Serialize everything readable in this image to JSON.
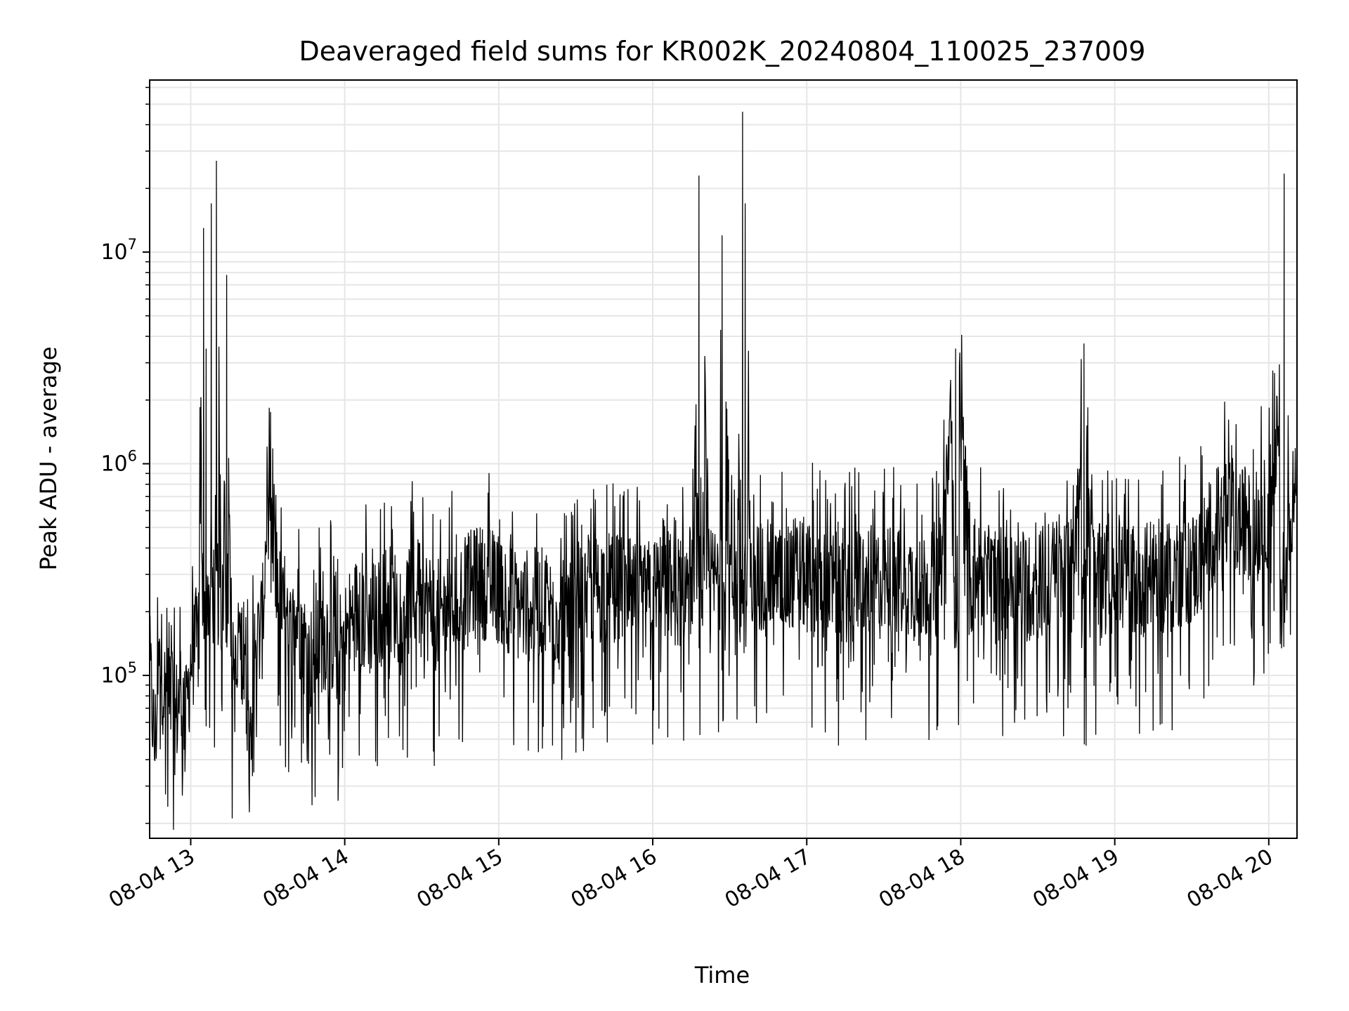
{
  "chart_data": {
    "type": "line",
    "title": "Deaveraged field sums for KR002K_20240804_110025_237009",
    "xlabel": "Time",
    "ylabel": "Peak ADU - average",
    "yscale": "log",
    "ylim": [
      17000,
      65000000
    ],
    "xlim": [
      "2024-08-04 12:44",
      "2024-08-04 20:11"
    ],
    "grid": true,
    "line_color": "#000000",
    "grid_color": "#e6e6e6",
    "x_ticks": [
      {
        "label": "08-04 13",
        "value": "2024-08-04 13:00"
      },
      {
        "label": "08-04 14",
        "value": "2024-08-04 14:00"
      },
      {
        "label": "08-04 15",
        "value": "2024-08-04 15:00"
      },
      {
        "label": "08-04 16",
        "value": "2024-08-04 16:00"
      },
      {
        "label": "08-04 17",
        "value": "2024-08-04 17:00"
      },
      {
        "label": "08-04 18",
        "value": "2024-08-04 18:00"
      },
      {
        "label": "08-04 19",
        "value": "2024-08-04 19:00"
      },
      {
        "label": "08-04 20",
        "value": "2024-08-04 20:00"
      }
    ],
    "y_ticks": [
      {
        "base": "10",
        "exp": "5",
        "value": 100000
      },
      {
        "base": "10",
        "exp": "6",
        "value": 1000000
      },
      {
        "base": "10",
        "exp": "7",
        "value": 10000000
      }
    ],
    "series": [
      {
        "x": [
          "2024-08-04 12:44",
          "2024-08-04 12:46",
          "2024-08-04 12:48",
          "2024-08-04 12:50",
          "2024-08-04 12:52",
          "2024-08-04 12:54",
          "2024-08-04 12:56",
          "2024-08-04 12:58",
          "2024-08-04 13:00",
          "2024-08-04 13:03",
          "2024-08-04 13:05",
          "2024-08-04 13:06",
          "2024-08-04 13:08",
          "2024-08-04 13:10",
          "2024-08-04 13:12",
          "2024-08-04 13:14",
          "2024-08-04 13:16",
          "2024-08-04 13:18",
          "2024-08-04 13:20",
          "2024-08-04 13:23",
          "2024-08-04 13:25",
          "2024-08-04 13:28",
          "2024-08-04 13:30",
          "2024-08-04 13:34",
          "2024-08-04 13:38",
          "2024-08-04 13:42",
          "2024-08-04 13:46",
          "2024-08-04 13:50",
          "2024-08-04 13:54",
          "2024-08-04 13:58",
          "2024-08-04 14:04",
          "2024-08-04 14:10",
          "2024-08-04 14:16",
          "2024-08-04 14:22",
          "2024-08-04 14:28",
          "2024-08-04 14:36",
          "2024-08-04 14:44",
          "2024-08-04 14:52",
          "2024-08-04 15:00",
          "2024-08-04 15:08",
          "2024-08-04 15:16",
          "2024-08-04 15:24",
          "2024-08-04 15:32",
          "2024-08-04 15:40",
          "2024-08-04 15:48",
          "2024-08-04 15:56",
          "2024-08-04 16:04",
          "2024-08-04 16:10",
          "2024-08-04 16:16",
          "2024-08-04 16:18",
          "2024-08-04 16:22",
          "2024-08-04 16:26",
          "2024-08-04 16:27",
          "2024-08-04 16:30",
          "2024-08-04 16:33",
          "2024-08-04 16:35",
          "2024-08-04 16:36",
          "2024-08-04 16:38",
          "2024-08-04 16:42",
          "2024-08-04 16:48",
          "2024-08-04 16:56",
          "2024-08-04 17:04",
          "2024-08-04 17:12",
          "2024-08-04 17:20",
          "2024-08-04 17:28",
          "2024-08-04 17:36",
          "2024-08-04 17:44",
          "2024-08-04 17:52",
          "2024-08-04 17:58",
          "2024-08-04 18:04",
          "2024-08-04 18:12",
          "2024-08-04 18:20",
          "2024-08-04 18:28",
          "2024-08-04 18:36",
          "2024-08-04 18:44",
          "2024-08-04 18:48",
          "2024-08-04 18:52",
          "2024-08-04 19:00",
          "2024-08-04 19:08",
          "2024-08-04 19:16",
          "2024-08-04 19:24",
          "2024-08-04 19:32",
          "2024-08-04 19:38",
          "2024-08-04 19:42",
          "2024-08-04 19:48",
          "2024-08-04 19:54",
          "2024-08-04 20:00",
          "2024-08-04 20:04",
          "2024-08-04 20:06",
          "2024-08-04 20:08",
          "2024-08-04 20:11"
        ],
        "y": [
          110000,
          45000,
          130000,
          80000,
          100000,
          60000,
          90000,
          55000,
          120000,
          150000,
          13000000,
          3500000,
          17000000,
          27000000,
          130000,
          7800000,
          110000,
          90000,
          140000,
          60000,
          120000,
          180000,
          700000,
          250000,
          140000,
          200000,
          110000,
          150000,
          160000,
          130000,
          200000,
          180000,
          230000,
          210000,
          250000,
          190000,
          230000,
          280000,
          260000,
          210000,
          220000,
          190000,
          240000,
          260000,
          250000,
          220000,
          280000,
          250000,
          290000,
          23000000,
          260000,
          300000,
          12000000,
          280000,
          270000,
          46000000,
          17000000,
          260000,
          300000,
          270000,
          310000,
          280000,
          260000,
          280000,
          270000,
          290000,
          260000,
          300000,
          3500000,
          290000,
          270000,
          280000,
          260000,
          300000,
          280000,
          3700000,
          270000,
          300000,
          280000,
          290000,
          310000,
          330000,
          480000,
          560000,
          520000,
          490000,
          600000,
          1400000,
          23500000,
          650000,
          700000
        ]
      }
    ]
  }
}
